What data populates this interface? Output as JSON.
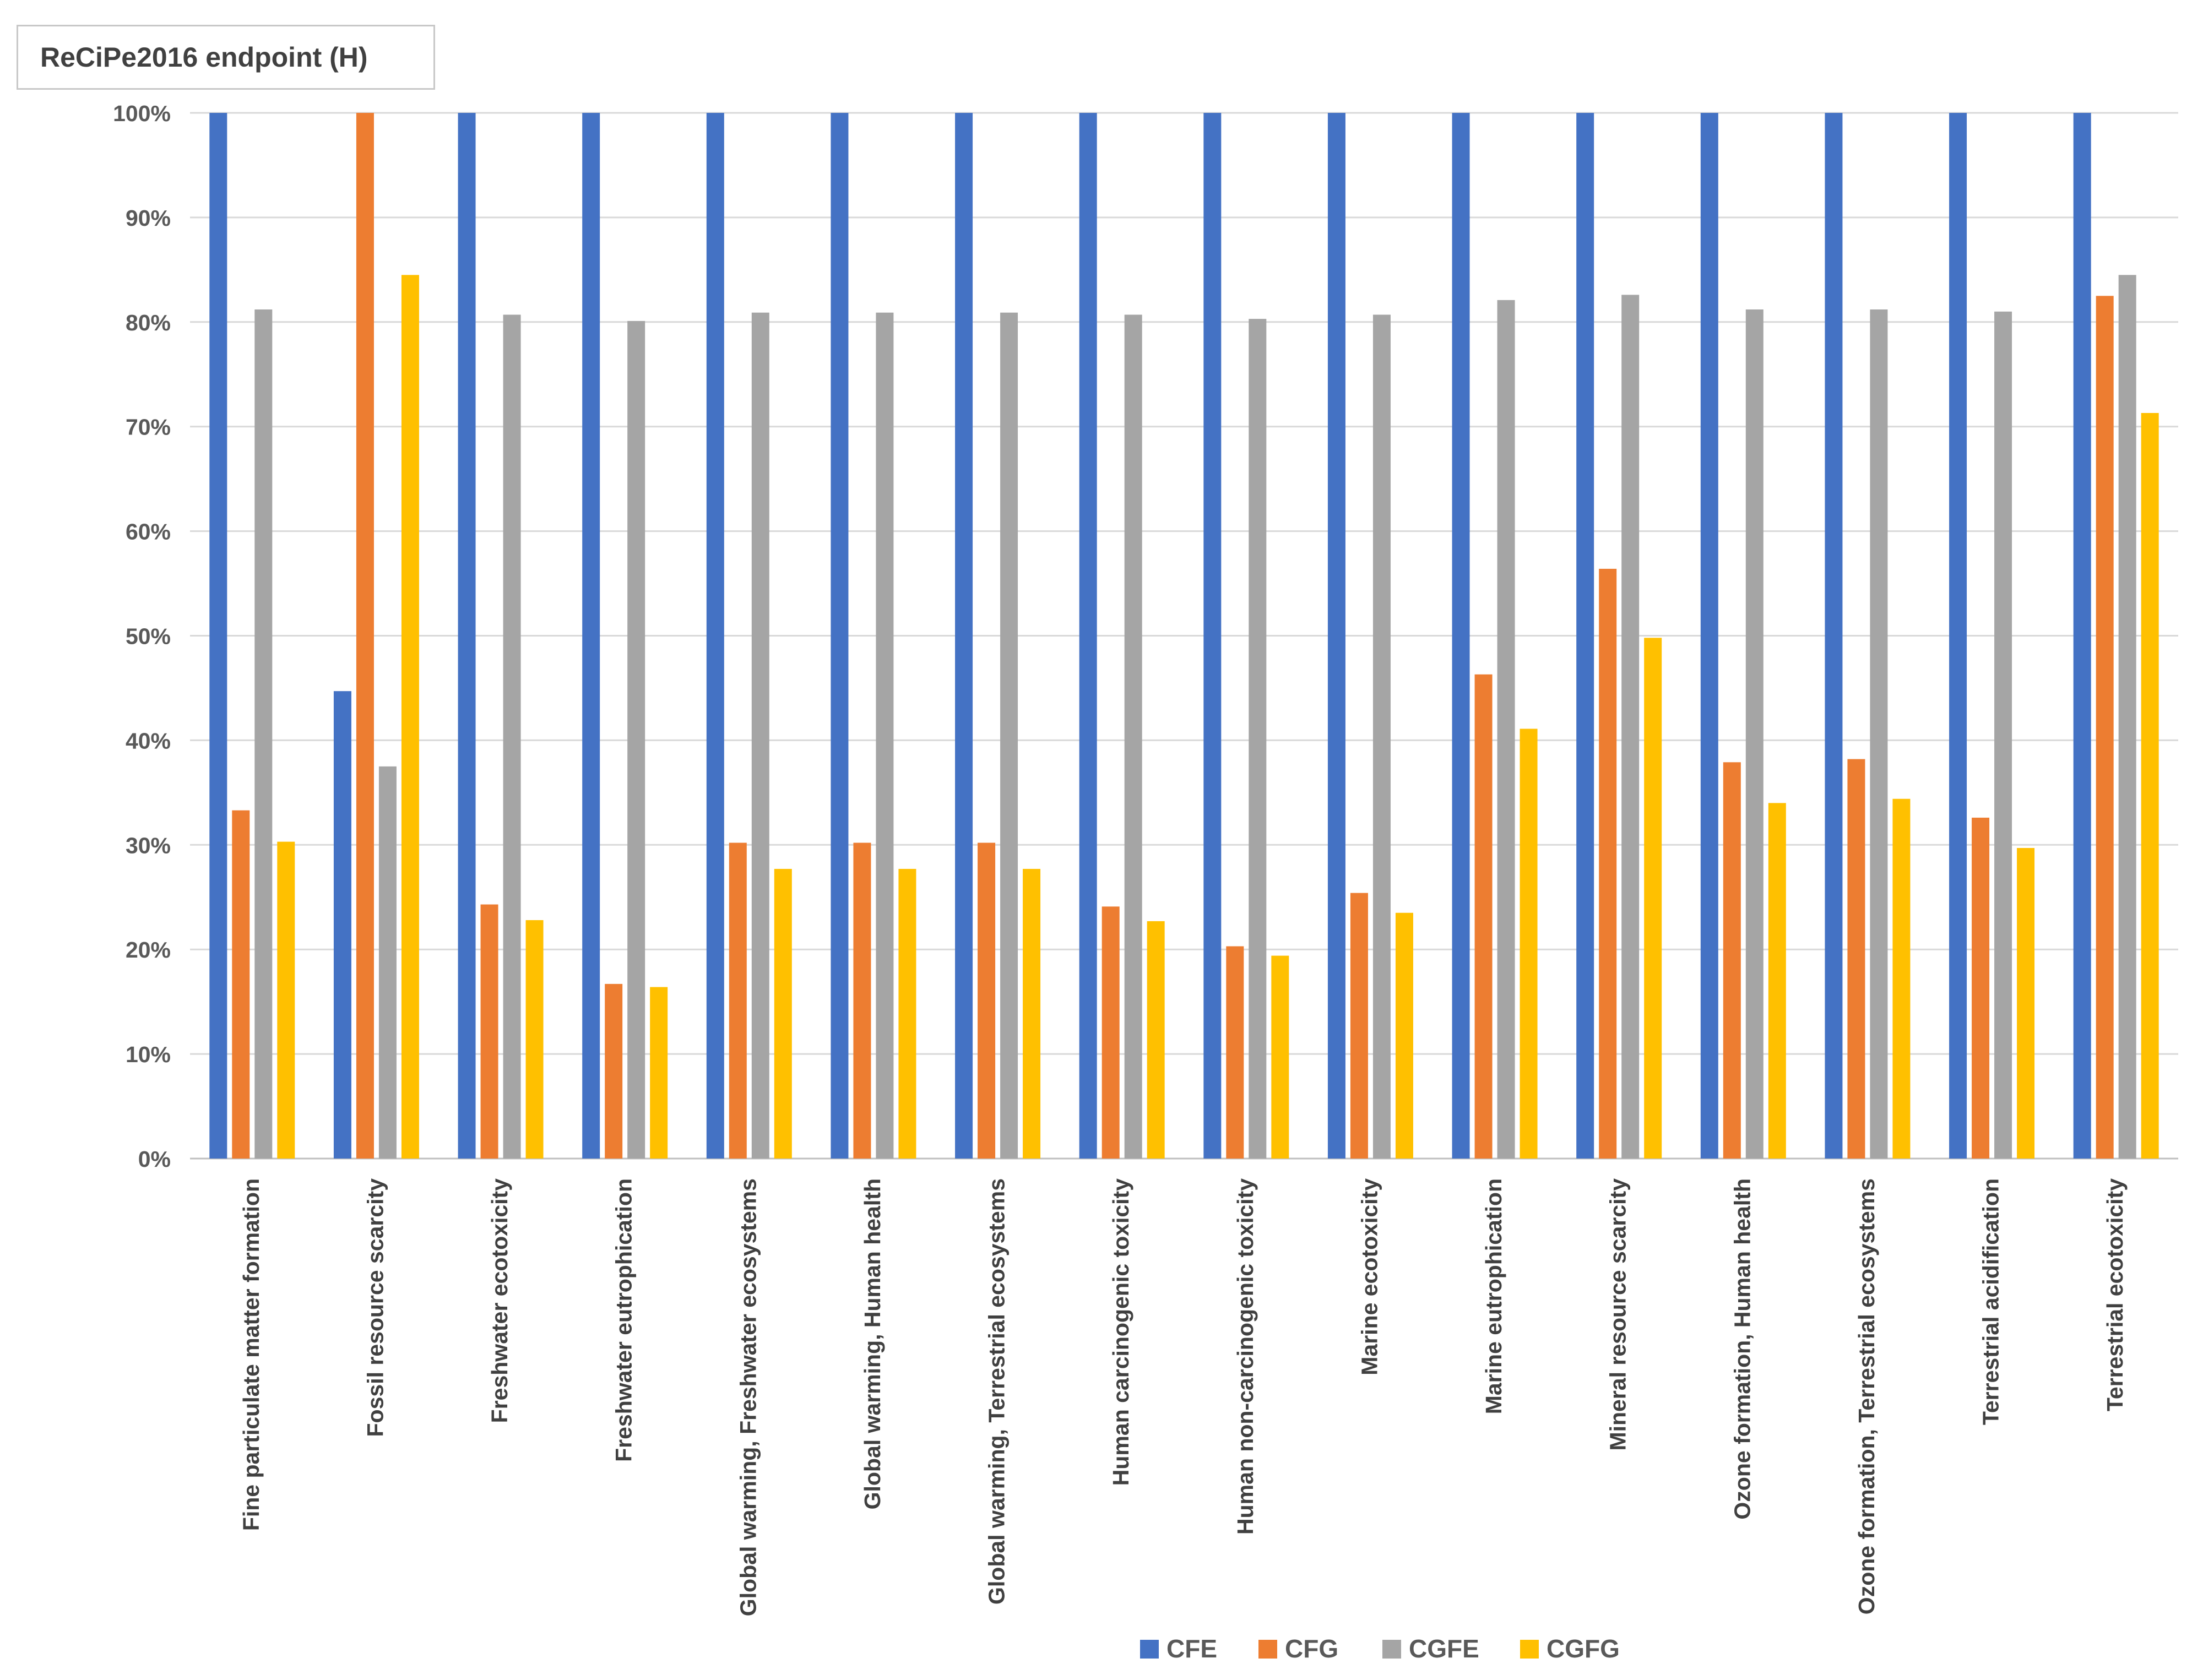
{
  "chart_data": {
    "type": "bar",
    "title": "ReCiPe2016 endpoint (H)",
    "xlabel": "",
    "ylabel": "",
    "ylim": [
      0,
      100
    ],
    "ytick_labels": [
      "0%",
      "10%",
      "20%",
      "30%",
      "40%",
      "50%",
      "60%",
      "70%",
      "80%",
      "90%",
      "100%"
    ],
    "grid": true,
    "legend_position": "bottom-center",
    "categories": [
      "Fine particulate matter formation",
      "Fossil resource scarcity",
      "Freshwater ecotoxicity",
      "Freshwater eutrophication",
      "Global warming, Freshwater ecosystems",
      "Global warming, Human health",
      "Global warming, Terrestrial ecosystems",
      "Human carcinogenic toxicity",
      "Human non-carcinogenic toxicity",
      "Marine ecotoxicity",
      "Marine eutrophication",
      "Mineral resource scarcity",
      "Ozone formation, Human health",
      "Ozone formation, Terrestrial ecosystems",
      "Terrestrial acidification",
      "Terrestrial ecotoxicity"
    ],
    "series": [
      {
        "name": "CFE",
        "color": "#4472c4",
        "values": [
          100,
          44.7,
          100,
          100,
          100,
          100,
          100,
          100,
          100,
          100,
          100,
          100,
          100,
          100,
          100,
          100
        ]
      },
      {
        "name": "CFG",
        "color": "#ed7d31",
        "values": [
          33.3,
          100,
          24.3,
          16.7,
          30.2,
          30.2,
          30.2,
          24.1,
          20.3,
          25.4,
          46.3,
          56.4,
          37.9,
          38.2,
          32.6,
          82.5
        ]
      },
      {
        "name": "CGFE",
        "color": "#a5a5a5",
        "values": [
          81.2,
          37.5,
          80.7,
          80.1,
          80.9,
          80.9,
          80.9,
          80.7,
          80.3,
          80.7,
          82.1,
          82.6,
          81.2,
          81.2,
          81.0,
          84.5
        ]
      },
      {
        "name": "CGFG",
        "color": "#ffc000",
        "values": [
          30.3,
          84.5,
          22.8,
          16.4,
          27.7,
          27.7,
          27.7,
          22.7,
          19.4,
          23.5,
          41.1,
          49.8,
          34.0,
          34.4,
          29.7,
          71.3
        ]
      }
    ]
  }
}
